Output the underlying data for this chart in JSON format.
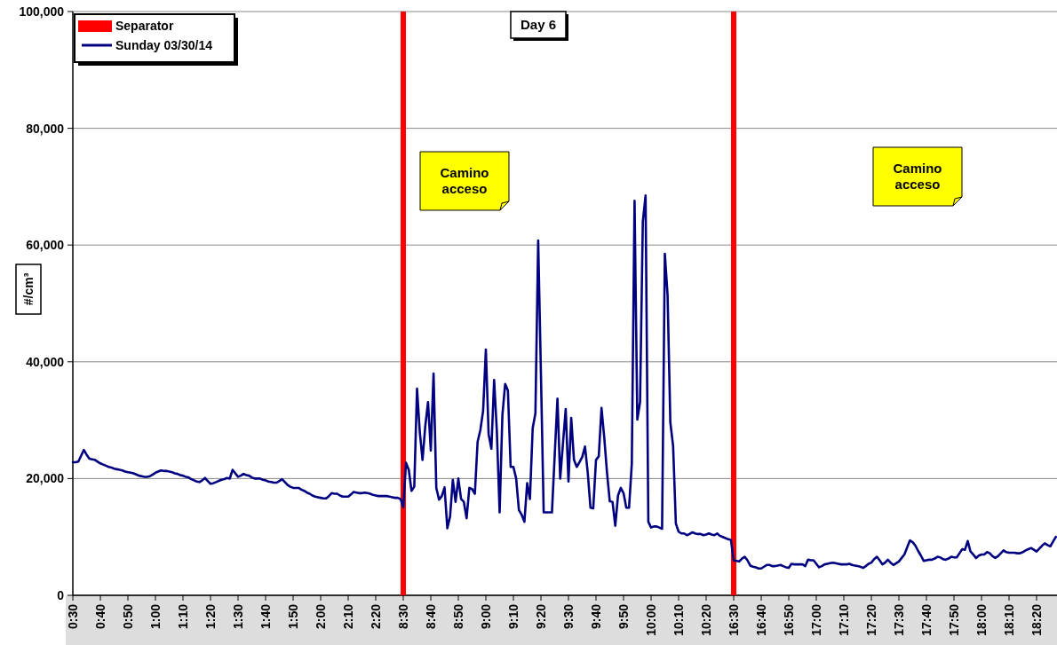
{
  "chart_data": {
    "type": "line",
    "ylabel": "#/cm³",
    "annotations": [
      "Day 6",
      "Camino acceso",
      "Camino acceso"
    ],
    "categories": [
      "0:30",
      null,
      null,
      null,
      null,
      null,
      null,
      null,
      null,
      null,
      "0:40",
      null,
      null,
      null,
      null,
      null,
      null,
      null,
      null,
      null,
      "0:50",
      null,
      null,
      null,
      null,
      null,
      null,
      null,
      null,
      null,
      "1:00",
      null,
      null,
      null,
      null,
      null,
      null,
      null,
      null,
      null,
      "1:10",
      null,
      null,
      null,
      null,
      null,
      null,
      null,
      null,
      null,
      "1:20",
      null,
      null,
      null,
      null,
      null,
      null,
      null,
      null,
      null,
      "1:30",
      null,
      null,
      null,
      null,
      null,
      null,
      null,
      null,
      null,
      "1:40",
      null,
      null,
      null,
      null,
      null,
      null,
      null,
      null,
      null,
      "1:50",
      null,
      null,
      null,
      null,
      null,
      null,
      null,
      null,
      null,
      "2:00",
      null,
      null,
      null,
      null,
      null,
      null,
      null,
      null,
      null,
      "2:10",
      null,
      null,
      null,
      null,
      null,
      null,
      null,
      null,
      null,
      "2:20",
      null,
      null,
      null,
      null,
      null,
      null,
      null,
      null,
      null,
      "8:30",
      null,
      null,
      null,
      null,
      null,
      null,
      null,
      null,
      null,
      "8:40",
      null,
      null,
      null,
      null,
      null,
      null,
      null,
      null,
      null,
      "8:50",
      null,
      null,
      null,
      null,
      null,
      null,
      null,
      null,
      null,
      "9:00",
      null,
      null,
      null,
      null,
      null,
      null,
      null,
      null,
      null,
      "9:10",
      null,
      null,
      null,
      null,
      null,
      null,
      null,
      null,
      null,
      "9:20",
      null,
      null,
      null,
      null,
      null,
      null,
      null,
      null,
      null,
      "9:30",
      null,
      null,
      null,
      null,
      null,
      null,
      null,
      null,
      null,
      "9:40",
      null,
      null,
      null,
      null,
      null,
      null,
      null,
      null,
      null,
      "9:50",
      null,
      null,
      null,
      null,
      null,
      null,
      null,
      null,
      null,
      "10:00",
      null,
      null,
      null,
      null,
      null,
      null,
      null,
      null,
      null,
      "10:10",
      null,
      null,
      null,
      null,
      null,
      null,
      null,
      null,
      null,
      "10:20",
      null,
      null,
      null,
      null,
      null,
      null,
      null,
      null,
      null,
      "16:30",
      null,
      null,
      null,
      null,
      null,
      null,
      null,
      null,
      null,
      "16:40",
      null,
      null,
      null,
      null,
      null,
      null,
      null,
      null,
      null,
      "16:50",
      null,
      null,
      null,
      null,
      null,
      null,
      null,
      null,
      null,
      "17:00",
      null,
      null,
      null,
      null,
      null,
      null,
      null,
      null,
      null,
      "17:10",
      null,
      null,
      null,
      null,
      null,
      null,
      null,
      null,
      null,
      "17:20",
      null,
      null,
      null,
      null,
      null,
      null,
      null,
      null,
      null,
      "17:30",
      null,
      null,
      null,
      null,
      null,
      null,
      null,
      null,
      null,
      "17:40",
      null,
      null,
      null,
      null,
      null,
      null,
      null,
      null,
      null,
      "17:50",
      null,
      null,
      null,
      null,
      null,
      null,
      null,
      null,
      null,
      "18:00",
      null,
      null,
      null,
      null,
      null,
      null,
      null,
      null,
      null,
      "18:10",
      null,
      null,
      null,
      null,
      null,
      null,
      null,
      null,
      null,
      "18:20",
      null,
      null,
      null,
      null,
      null,
      null,
      null
    ],
    "series": [
      {
        "name": "Separator",
        "type": "bar",
        "color": "#ff0000",
        "x": [
          "8:30",
          "16:30"
        ],
        "values": [
          100000,
          100000
        ]
      },
      {
        "name": "Sunday 03/30/14",
        "color": "#000080",
        "values": [
          22800,
          22800,
          22900,
          23900,
          24900,
          24100,
          23400,
          23300,
          23200,
          22900,
          22600,
          22400,
          22200,
          22000,
          21900,
          21700,
          21600,
          21500,
          21400,
          21200,
          21100,
          21000,
          20900,
          20700,
          20500,
          20400,
          20300,
          20300,
          20400,
          20700,
          21000,
          21200,
          21400,
          21300,
          21300,
          21200,
          21100,
          20900,
          20800,
          20600,
          20500,
          20300,
          20200,
          19900,
          19700,
          19500,
          19400,
          19700,
          20100,
          19600,
          19100,
          19200,
          19400,
          19600,
          19800,
          19900,
          20100,
          20000,
          21500,
          20900,
          20300,
          20500,
          20800,
          20600,
          20500,
          20200,
          20000,
          20000,
          20000,
          19800,
          19700,
          19500,
          19400,
          19300,
          19300,
          19600,
          19900,
          19400,
          18900,
          18600,
          18400,
          18400,
          18400,
          18100,
          17900,
          17600,
          17400,
          17100,
          16900,
          16800,
          16700,
          16600,
          16600,
          17000,
          17500,
          17400,
          17400,
          17100,
          16900,
          16900,
          16900,
          17300,
          17700,
          17600,
          17500,
          17500,
          17600,
          17500,
          17400,
          17200,
          17100,
          17000,
          17000,
          17000,
          17000,
          16900,
          16800,
          16700,
          16700,
          16500,
          15100,
          22700,
          21500,
          17900,
          18600,
          35400,
          28000,
          23200,
          29000,
          33100,
          24800,
          38000,
          18400,
          16400,
          17000,
          18500,
          11500,
          13500,
          19800,
          16000,
          20000,
          16500,
          16000,
          13200,
          18400,
          18200,
          17400,
          26300,
          28300,
          31600,
          42100,
          27600,
          25100,
          36900,
          28000,
          14200,
          30800,
          36200,
          35100,
          22000,
          22000,
          20000,
          14600,
          13800,
          12600,
          19200,
          16500,
          28600,
          31200,
          60800,
          38000,
          14200,
          14200,
          14200,
          14200,
          24000,
          33700,
          20000,
          26000,
          31900,
          19500,
          30400,
          23200,
          22000,
          22800,
          23700,
          25500,
          21000,
          15000,
          14900,
          23200,
          23800,
          32100,
          27000,
          21000,
          16100,
          16000,
          11900,
          17100,
          18400,
          17500,
          15000,
          15000,
          22500,
          67600,
          30100,
          33100,
          64000,
          68500,
          12600,
          11600,
          11800,
          11800,
          11600,
          11400,
          58500,
          51400,
          29600,
          25600,
          12300,
          10900,
          10600,
          10600,
          10300,
          10500,
          10800,
          10600,
          10500,
          10500,
          10300,
          10400,
          10600,
          10400,
          10300,
          10600,
          10200,
          10000,
          9800,
          9600,
          9500,
          6000,
          5900,
          5800,
          6300,
          6600,
          6000,
          5100,
          4900,
          4800,
          4600,
          4600,
          4900,
          5200,
          5200,
          5000,
          5000,
          5100,
          5200,
          5000,
          4800,
          4700,
          5400,
          5300,
          5300,
          5300,
          5300,
          5000,
          6100,
          6000,
          6000,
          5400,
          4800,
          5000,
          5300,
          5400,
          5500,
          5600,
          5500,
          5400,
          5300,
          5300,
          5300,
          5400,
          5200,
          5100,
          5000,
          4900,
          4700,
          5000,
          5400,
          5600,
          6200,
          6600,
          6000,
          5300,
          5600,
          6100,
          5600,
          5200,
          5500,
          5800,
          6400,
          7000,
          8200,
          9400,
          9100,
          8500,
          7600,
          6800,
          5900,
          6000,
          6100,
          6100,
          6300,
          6600,
          6500,
          6200,
          6100,
          6300,
          6600,
          6500,
          6500,
          7200,
          7900,
          7800,
          9300,
          7500,
          7000,
          6400,
          6800,
          7000,
          7000,
          7400,
          7200,
          6700,
          6400,
          6700,
          7200,
          7700,
          7400,
          7300,
          7300,
          7300,
          7200,
          7200,
          7400,
          7700,
          7900,
          8100,
          7800,
          7500,
          8000,
          8500,
          8900,
          8600,
          8400,
          9200,
          10000
        ]
      }
    ],
    "ylim": [
      0,
      100000
    ],
    "yticks": [
      0,
      {
        "value": 20000,
        "label": "20,000"
      },
      {
        "value": 40000,
        "label": "40,000"
      },
      {
        "value": 60000,
        "label": "60,000"
      },
      {
        "value": 80000,
        "label": "80,000"
      },
      {
        "value": 100000,
        "label": "100,000"
      }
    ],
    "grid": "y",
    "legend": "top left"
  }
}
